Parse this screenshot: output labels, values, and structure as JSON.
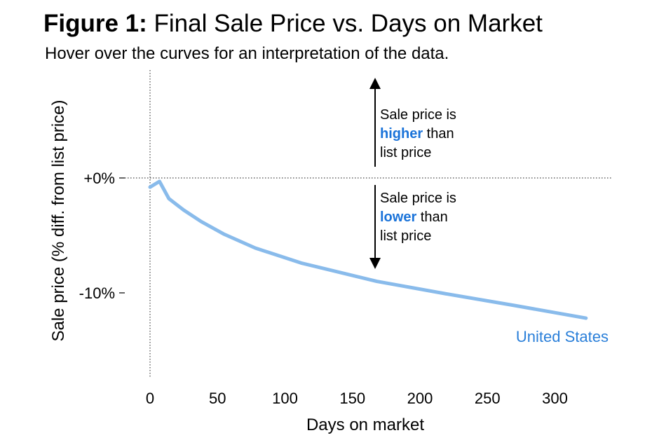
{
  "figure": {
    "title_prefix": "Figure 1:",
    "title_text": " Final Sale Price vs. Days on Market",
    "subtitle": "Hover over the curves for an interpretation of the data."
  },
  "annotations": {
    "higher": {
      "line1": "Sale price is",
      "highlight": "higher",
      "rest": " than",
      "line3": "list price"
    },
    "lower": {
      "line1": "Sale price is",
      "highlight": "lower",
      "rest": " than",
      "line3": "list price"
    }
  },
  "colors": {
    "series": "#89bbeb",
    "series_label": "#2a7fd9",
    "highlight": "#1a73d9"
  },
  "chart_data": {
    "type": "line",
    "xlabel": "Days on market",
    "ylabel": "Sale price (% diff. from list price)",
    "xlim": [
      0,
      330
    ],
    "ylim": [
      -17.5,
      8.5
    ],
    "x_ticks": [
      0,
      50,
      100,
      150,
      200,
      250,
      300
    ],
    "y_ticks": [
      0,
      -10
    ],
    "y_tick_labels": [
      "+0%",
      "-10%"
    ],
    "grid": false,
    "reference_lines": [
      {
        "axis": "y",
        "value": 0,
        "style": "dotted"
      },
      {
        "axis": "x",
        "value": 0,
        "style": "dotted"
      }
    ],
    "series": [
      {
        "name": "United States",
        "x": [
          0,
          7,
          14,
          25,
          38,
          55,
          78,
          112,
          168,
          220,
          270,
          323
        ],
        "y": [
          -0.8,
          -0.3,
          -1.8,
          -2.8,
          -3.8,
          -4.9,
          -6.1,
          -7.4,
          -9.0,
          -10.1,
          -11.1,
          -12.2
        ]
      }
    ]
  }
}
